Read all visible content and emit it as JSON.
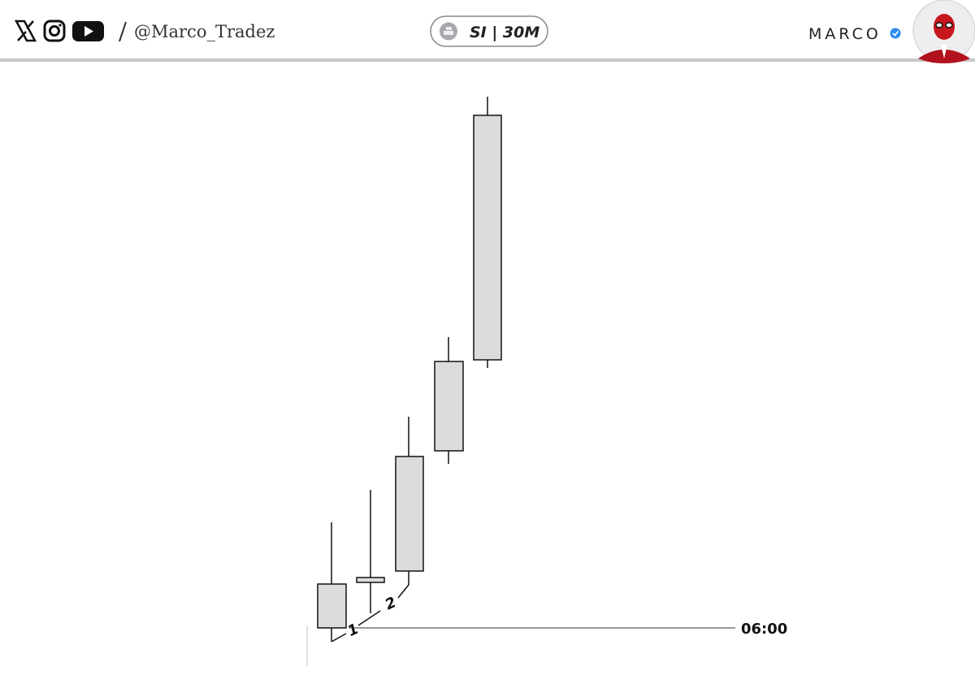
{
  "header": {
    "handle": "@Marco_Tradez",
    "badge": "SI | 30M",
    "name": "MARCO"
  },
  "chart": {
    "labels": [
      "1",
      "2"
    ],
    "time_label": "06:00"
  }
}
